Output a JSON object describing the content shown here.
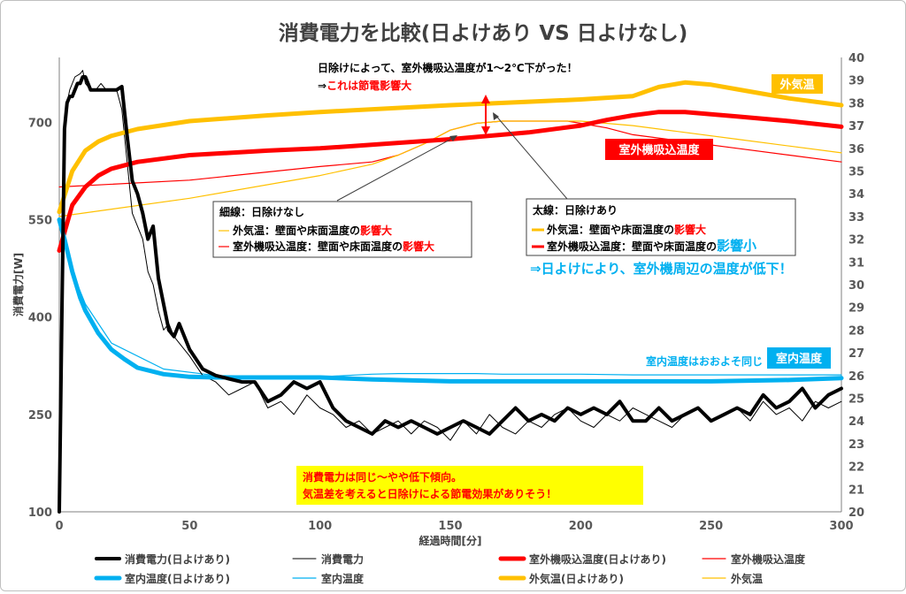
{
  "chart_data": {
    "type": "line",
    "title": "消費電力を比較(日よけあり VS 日よけなし)",
    "xlabel": "経過時間[分]",
    "ylabel": "消費電力[W]",
    "xlim": [
      0,
      300
    ],
    "xticks": [
      0,
      50,
      100,
      150,
      200,
      250,
      300
    ],
    "ylim_left": [
      100,
      800
    ],
    "yticks_left": [
      100,
      250,
      400,
      550,
      700
    ],
    "ylim_right": [
      20,
      40
    ],
    "yticks_right": [
      20,
      21,
      22,
      23,
      24,
      25,
      26,
      27,
      28,
      29,
      30,
      31,
      32,
      33,
      34,
      35,
      36,
      37,
      38,
      39,
      40
    ],
    "grid": false,
    "legend_position": "bottom",
    "series": [
      {
        "key": "power_with",
        "name": "消費電力(日よけあり)",
        "axis": "left",
        "color": "#000000",
        "width": 4,
        "x": [
          0,
          1,
          2,
          3,
          4,
          5,
          7,
          8,
          9,
          10,
          12,
          14,
          16,
          18,
          20,
          22,
          24,
          26,
          28,
          30,
          32,
          34,
          36,
          38,
          40,
          42,
          44,
          46,
          48,
          50,
          55,
          60,
          65,
          70,
          75,
          80,
          85,
          90,
          95,
          100,
          105,
          110,
          115,
          120,
          125,
          130,
          135,
          140,
          145,
          150,
          155,
          160,
          165,
          170,
          175,
          180,
          185,
          190,
          195,
          200,
          205,
          210,
          215,
          220,
          225,
          230,
          235,
          240,
          245,
          250,
          255,
          260,
          265,
          270,
          275,
          280,
          285,
          290,
          295,
          300
        ],
        "y": [
          100,
          400,
          690,
          730,
          740,
          740,
          760,
          760,
          770,
          770,
          750,
          750,
          750,
          750,
          750,
          750,
          755,
          680,
          610,
          590,
          560,
          520,
          540,
          460,
          420,
          380,
          370,
          390,
          370,
          350,
          320,
          310,
          305,
          300,
          300,
          270,
          280,
          300,
          290,
          300,
          260,
          240,
          230,
          220,
          240,
          230,
          240,
          230,
          220,
          230,
          240,
          230,
          220,
          240,
          260,
          240,
          250,
          240,
          260,
          250,
          260,
          250,
          270,
          240,
          240,
          260,
          240,
          250,
          260,
          240,
          250,
          260,
          250,
          280,
          260,
          270,
          290,
          260,
          280,
          290
        ]
      },
      {
        "key": "power_without",
        "name": "消費電力",
        "axis": "left",
        "color": "#000000",
        "width": 1,
        "x": [
          0,
          1,
          2,
          3,
          4,
          6,
          8,
          9,
          10,
          12,
          14,
          16,
          18,
          20,
          22,
          24,
          26,
          28,
          30,
          32,
          34,
          36,
          38,
          40,
          42,
          44,
          46,
          48,
          50,
          55,
          60,
          65,
          70,
          75,
          80,
          85,
          90,
          95,
          100,
          105,
          110,
          115,
          120,
          125,
          130,
          135,
          140,
          145,
          150,
          155,
          160,
          165,
          170,
          175,
          180,
          185,
          190,
          195,
          200,
          205,
          210,
          215,
          220,
          225,
          230,
          235,
          240,
          245,
          250,
          255,
          260,
          265,
          270,
          275,
          280,
          285,
          290,
          295,
          300
        ],
        "y": [
          100,
          420,
          680,
          730,
          750,
          770,
          775,
          780,
          760,
          750,
          750,
          760,
          750,
          750,
          750,
          720,
          640,
          560,
          540,
          520,
          470,
          450,
          410,
          380,
          390,
          370,
          360,
          350,
          340,
          310,
          300,
          280,
          290,
          300,
          260,
          270,
          250,
          280,
          260,
          250,
          230,
          240,
          220,
          230,
          240,
          220,
          240,
          230,
          210,
          240,
          220,
          250,
          230,
          220,
          240,
          230,
          250,
          260,
          240,
          230,
          250,
          240,
          260,
          250,
          240,
          230,
          250,
          260,
          240,
          250,
          260,
          240,
          270,
          250,
          260,
          240,
          270,
          260,
          270
        ]
      },
      {
        "key": "outdoor_unit_with",
        "name": "室外機吸込温度(日よけあり)",
        "axis": "right",
        "color": "#ff0000",
        "width": 5,
        "x": [
          0,
          5,
          10,
          15,
          20,
          30,
          50,
          80,
          100,
          150,
          180,
          200,
          210,
          220,
          230,
          240,
          260,
          280,
          300
        ],
        "y": [
          31.5,
          33.5,
          34.3,
          34.8,
          35.1,
          35.4,
          35.7,
          35.9,
          36.0,
          36.4,
          36.7,
          37.0,
          37.25,
          37.45,
          37.6,
          37.6,
          37.4,
          37.2,
          36.95
        ]
      },
      {
        "key": "outdoor_unit_without",
        "name": "室外機吸込温度",
        "axis": "right",
        "color": "#ff0000",
        "width": 1.2,
        "x": [
          0,
          50,
          100,
          120,
          130,
          140,
          150,
          160,
          170,
          180,
          195,
          200,
          210,
          220,
          240,
          260,
          280,
          300
        ],
        "y": [
          34.3,
          34.6,
          35.2,
          35.4,
          35.7,
          36.2,
          36.8,
          37.1,
          37.2,
          37.2,
          37.2,
          37.1,
          36.9,
          36.6,
          36.3,
          36.0,
          35.7,
          35.4
        ]
      },
      {
        "key": "indoor_with",
        "name": "室内温度(日よけあり)",
        "axis": "left",
        "color": "#00b0f0",
        "width": 5,
        "x": [
          0,
          2,
          5,
          8,
          10,
          15,
          20,
          25,
          30,
          40,
          50,
          60,
          70,
          80,
          100,
          120,
          150,
          180,
          200,
          220,
          250,
          280,
          300
        ],
        "y": [
          550,
          520,
          470,
          430,
          410,
          375,
          350,
          335,
          322,
          312,
          308,
          307,
          307,
          307,
          307,
          304,
          301,
          301,
          301,
          301,
          301,
          303,
          306
        ]
      },
      {
        "key": "indoor_without",
        "name": "室内温度",
        "axis": "left",
        "color": "#00b0f0",
        "width": 1.2,
        "x": [
          0,
          5,
          10,
          20,
          40,
          60,
          80,
          100,
          110,
          120,
          130,
          140,
          150,
          160,
          170,
          180,
          200,
          220,
          250,
          280,
          300
        ],
        "y": [
          550,
          470,
          420,
          360,
          320,
          310,
          309,
          308,
          310,
          312,
          313,
          313,
          313,
          313,
          312,
          312,
          312,
          311,
          311,
          311,
          311
        ]
      },
      {
        "key": "outdoor_with",
        "name": "外気温(日よけあり)",
        "axis": "right",
        "color": "#ffc000",
        "width": 5,
        "x": [
          0,
          5,
          10,
          15,
          20,
          30,
          50,
          80,
          100,
          150,
          180,
          200,
          220,
          230,
          240,
          250,
          260,
          280,
          300
        ],
        "y": [
          33.2,
          35.0,
          35.9,
          36.3,
          36.55,
          36.85,
          37.2,
          37.45,
          37.6,
          37.9,
          38.05,
          38.15,
          38.3,
          38.7,
          38.9,
          38.8,
          38.6,
          38.2,
          37.9
        ]
      },
      {
        "key": "outdoor_without",
        "name": "外気温",
        "axis": "right",
        "color": "#ffc000",
        "width": 1.2,
        "x": [
          0,
          50,
          100,
          120,
          130,
          140,
          150,
          160,
          170,
          180,
          200,
          220,
          240,
          260,
          280,
          300
        ],
        "y": [
          33.0,
          33.8,
          34.8,
          35.3,
          35.7,
          36.2,
          36.8,
          37.1,
          37.2,
          37.2,
          37.2,
          37.0,
          36.7,
          36.4,
          36.1,
          35.8
        ]
      }
    ],
    "annotations": {
      "top_line1": "日除けによって、室外機吸込温度が1～2℃下がった！",
      "top_line2_prefix": "⇒",
      "top_line2_red": "これは節電影響大",
      "thin_box_title": "細線：日除けなし",
      "thin_box_line1_a": "外気温：壁面や床面温度の",
      "thin_box_line1_b": "影響大",
      "thin_box_line2_a": "室外機吸込温度：壁面や床面温度の",
      "thin_box_line2_b": "影響大",
      "thick_box_title": "太線：日除けあり",
      "thick_box_line1_a": "外気温：壁面や床面温度の",
      "thick_box_line1_b": "影響大",
      "thick_box_line2_a": "室外機吸込温度：壁面や床面温度の",
      "thick_box_line2_b": "影響小",
      "blue_note": "⇒日よけにより、室外機周辺の温度が低下！",
      "indoor_note": "室内温度はおおよそ同じ",
      "label_outdoor": "外気温",
      "label_outdoor_unit": "室外機吸込温度",
      "label_indoor": "室内温度",
      "yellow_box_line1": "消費電力は同じ～やや低下傾向。",
      "yellow_box_line2": "気温差を考えると日除けによる節電効果がありそう！"
    },
    "colors": {
      "power": "#000000",
      "outdoor_unit": "#ff0000",
      "indoor": "#00b0f0",
      "outdoor": "#ffc000",
      "note_yellow": "#ffff00"
    }
  }
}
